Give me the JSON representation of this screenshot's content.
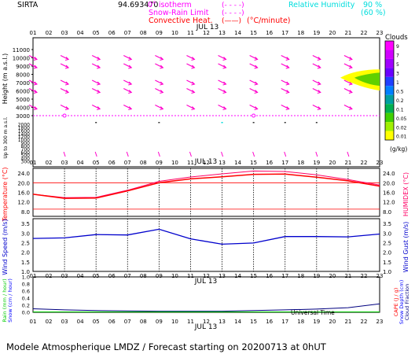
{
  "header": {
    "station": "SIRTA",
    "coords": "94.693470",
    "legend_isotherm": "0° isotherm",
    "legend_isotherm_marker": "(- - - -)",
    "legend_snow_rain": "Snow-Rain Limit",
    "legend_snow_rain_marker": "(- - - -)",
    "legend_convective": "Convective Heat.",
    "legend_convective_marker": "(——)",
    "legend_convective_unit": "(°C/minute)",
    "rh_label": "Relative Humidity",
    "rh_90": "90 %",
    "rh_60": "(60 %)"
  },
  "hours": [
    "01",
    "02",
    "03",
    "04",
    "05",
    "06",
    "07",
    "08",
    "09",
    "10",
    "11",
    "12",
    "13",
    "14",
    "15",
    "16",
    "17",
    "18",
    "19",
    "20",
    "21",
    "22",
    "23"
  ],
  "date_label": "JUL 13",
  "clouds": {
    "title": "Clouds",
    "unit": "(g/kg)",
    "scale_labels": [
      "9",
      "7",
      "5",
      "3",
      "1",
      "0.5",
      "0.2",
      "0.1",
      "0.05",
      "0.02",
      "0.01"
    ],
    "scale_colors": [
      "#ff00ff",
      "#d000ff",
      "#a000ff",
      "#6a00ff",
      "#2040ff",
      "#0080ff",
      "#00a0a0",
      "#00b050",
      "#40d000",
      "#a0f000",
      "#ffff00"
    ]
  },
  "colors": {
    "wind_arrow": "#ff00cc",
    "temperature": "#ff0000",
    "humidex": "#ff0066",
    "wind_speed": "#0000cc",
    "rain": "#00cc00",
    "snow": "#0000ff",
    "cloud_fraction": "#000080",
    "isotherm": "#ff00ff",
    "rh": "#00dddd"
  },
  "footer": {
    "universal_time": "Universal Time",
    "forecast": "Modele Atmospherique LMDZ / Forecast starting on 20200713 at 0hUT"
  },
  "chart_data": [
    {
      "type": "line",
      "panel": "height-profile",
      "ylabel": "Height (m a.s.l.)",
      "ylabel_low": "Up to 300 m a.s.l.",
      "y_ticks_upper": [
        11000,
        10000,
        9000,
        8000,
        7000,
        6000,
        5000,
        4000,
        3000
      ],
      "y_ticks_lower": [
        2000,
        1800,
        1600,
        1400,
        1200,
        1000,
        900,
        800,
        700,
        600,
        500,
        400,
        300
      ],
      "wind_arrow_heights": [
        10000,
        9000,
        7000,
        6000,
        4000
      ],
      "wind_arrow_hours": [
        1,
        3,
        5,
        7,
        9,
        11,
        13,
        15,
        17,
        19,
        21
      ],
      "isotherm_height": 3000,
      "isotherm_markers": [
        3,
        15
      ],
      "cloud_patch": {
        "hours": [
          21,
          23
        ],
        "height_range": [
          6800,
          8400
        ]
      }
    },
    {
      "type": "line",
      "panel": "temperature",
      "ylabel": "Temperature (°C)",
      "ylabel_right": "HUMIDEX (°C)",
      "y_ticks": [
        8.0,
        12.0,
        16.0,
        20.0,
        24.0
      ],
      "ylim": [
        6,
        26
      ],
      "x": [
        1,
        3,
        5,
        7,
        9,
        11,
        13,
        15,
        17,
        19,
        21,
        23
      ],
      "series": [
        {
          "name": "Temperature",
          "values": [
            15.2,
            13.5,
            13.6,
            16.6,
            20.0,
            21.6,
            22.5,
            23.5,
            23.6,
            22.3,
            20.8,
            18.6
          ]
        },
        {
          "name": "HUMIDEX",
          "values": [
            15.2,
            13.8,
            13.9,
            16.9,
            20.6,
            22.4,
            23.7,
            24.9,
            24.7,
            23.3,
            21.3,
            19.0
          ]
        }
      ],
      "reference_lines": [
        20,
        9
      ]
    },
    {
      "type": "line",
      "panel": "wind",
      "ylabel": "Wind Speed (m/s)",
      "ylabel_right": "Wind Gust (m/s)",
      "y_ticks": [
        1.0,
        1.5,
        2.0,
        2.5,
        3.0,
        3.5
      ],
      "ylim": [
        1.0,
        3.75
      ],
      "x": [
        1,
        3,
        5,
        7,
        9,
        11,
        13,
        15,
        17,
        19,
        21,
        23
      ],
      "series": [
        {
          "name": "Wind Speed",
          "values": [
            2.72,
            2.75,
            2.92,
            2.9,
            3.2,
            2.7,
            2.42,
            2.48,
            2.82,
            2.82,
            2.8,
            2.95
          ]
        }
      ]
    },
    {
      "type": "line",
      "panel": "precipitation",
      "ylabel_left_green": "Rain (mm / hour)",
      "ylabel_left_blue": "Snow (cm / hour)",
      "ylabel_right_red": "CAPE (J / g)",
      "ylabel_right_blue": "Snow Depth (cm)",
      "ylabel_right_navy": "Cloud Fraction",
      "y_ticks": [
        0.0,
        0.2,
        0.4,
        0.6,
        0.8,
        1.0
      ],
      "ylim": [
        0,
        1.0
      ],
      "x": [
        1,
        3,
        5,
        7,
        9,
        11,
        13,
        15,
        17,
        19,
        21,
        23
      ],
      "series": [
        {
          "name": "Cloud Fraction",
          "values": [
            0.1,
            0.07,
            0.05,
            0.04,
            0.03,
            0.03,
            0.03,
            0.05,
            0.07,
            0.09,
            0.13,
            0.24
          ]
        }
      ]
    }
  ]
}
